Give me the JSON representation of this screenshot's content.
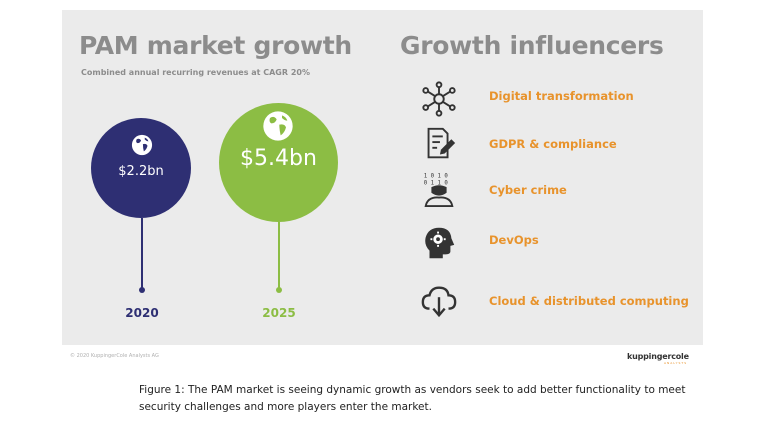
{
  "slide": {
    "left_title": "PAM market growth",
    "subtitle": "Combined annual recurring revenues at CAGR 20%",
    "right_title": "Growth influencers",
    "markets": [
      {
        "year": "2020",
        "value": "$2.2bn",
        "color": "#2e2f73"
      },
      {
        "year": "2025",
        "value": "$5.4bn",
        "color": "#8cbd44"
      }
    ],
    "influencers": [
      {
        "label": "Digital transformation",
        "icon": "network-hub-icon"
      },
      {
        "label": "GDPR & compliance",
        "icon": "document-pen-icon"
      },
      {
        "label": "Cyber crime",
        "icon": "hacker-binary-icon"
      },
      {
        "label": "DevOps",
        "icon": "head-gear-icon"
      },
      {
        "label": "Cloud & distributed computing",
        "icon": "cloud-download-icon"
      }
    ],
    "footer_left": "© 2020 KuppingerCole Analysts AG",
    "logo": "kuppingercole",
    "logo_sub": "ANALYSTS"
  },
  "caption": "Figure 1: The PAM market is seeing dynamic growth as vendors seek to add better functionality to meet security challenges and more players enter the market.",
  "colors": {
    "accent_orange": "#e8932c",
    "navy": "#2e2f73",
    "green": "#8cbd44",
    "title_grey": "#8c8c8c"
  }
}
